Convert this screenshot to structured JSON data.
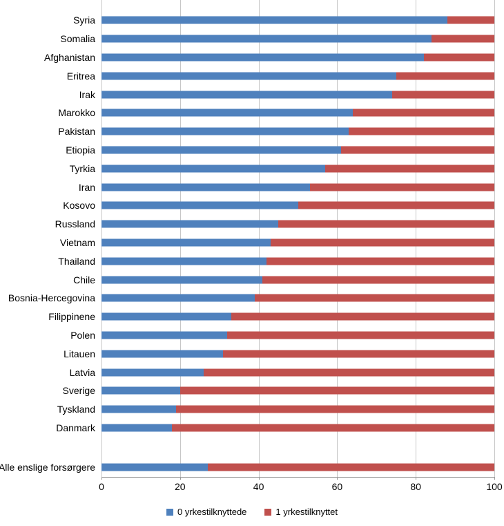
{
  "chart_data": {
    "type": "bar",
    "orientation": "horizontal",
    "stacked": true,
    "title": "",
    "xlabel": "",
    "ylabel": "",
    "xlim": [
      0,
      100
    ],
    "x_ticks": [
      0,
      20,
      40,
      60,
      80,
      100
    ],
    "grid": true,
    "legend_position": "bottom",
    "categories": [
      "Syria",
      "Somalia",
      "Afghanistan",
      "Eritrea",
      "Irak",
      "Marokko",
      "Pakistan",
      "Etiopia",
      "Tyrkia",
      "Iran",
      "Kosovo",
      "Russland",
      "Vietnam",
      "Thailand",
      "Chile",
      "Bosnia-Hercegovina",
      "Filippinene",
      "Polen",
      "Litauen",
      "Latvia",
      "Sverige",
      "Tyskland",
      "Danmark"
    ],
    "summary_category": "Alle enslige forsørgere",
    "series": [
      {
        "name": "0 yrkestilknyttede",
        "color": "#4F81BD",
        "values": [
          88,
          84,
          82,
          75,
          74,
          64,
          63,
          61,
          57,
          53,
          50,
          45,
          43,
          42,
          41,
          39,
          33,
          32,
          31,
          26,
          20,
          19,
          18
        ],
        "summary_value": 27
      },
      {
        "name": "1 yrkestilknyttet",
        "color": "#C0504D",
        "values": [
          12,
          16,
          18,
          25,
          26,
          36,
          37,
          39,
          43,
          47,
          50,
          55,
          57,
          58,
          59,
          61,
          67,
          68,
          69,
          74,
          80,
          81,
          82
        ],
        "summary_value": 73
      }
    ]
  }
}
